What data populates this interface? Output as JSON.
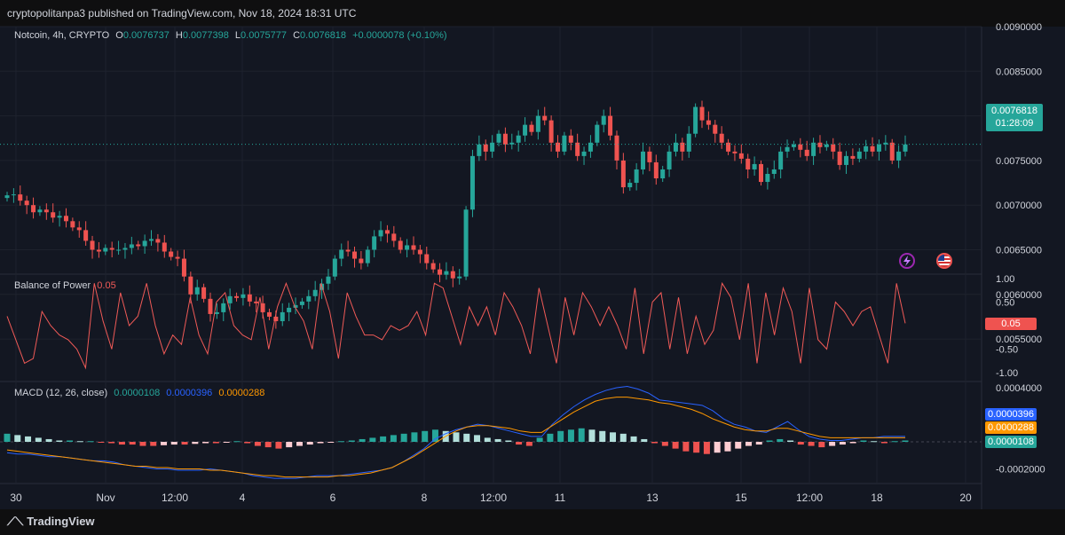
{
  "header": {
    "publisher_line": "cryptopolitanpa3 published on TradingView.com, Nov 18, 2024 18:31 UTC"
  },
  "legend": {
    "symbol": "Notcoin, 4h, CRYPTO",
    "o_label": "O",
    "o_value": "0.0076737",
    "h_label": "H",
    "h_value": "0.0077398",
    "l_label": "L",
    "l_value": "0.0075777",
    "c_label": "C",
    "c_value": "0.0076818",
    "change": "+0.0000078 (+0.10%)"
  },
  "price_badge": {
    "price": "0.0076818",
    "countdown": "01:28:09"
  },
  "bop": {
    "title": "Balance of Power",
    "value": "0.05",
    "badge": "0.05"
  },
  "macd": {
    "title": "MACD (12, 26, close)",
    "hist_value": "0.0000108",
    "macd_value": "0.0000396",
    "signal_value": "0.0000288",
    "badge_macd": "0.0000396",
    "badge_signal": "0.0000288",
    "badge_hist": "0.0000108"
  },
  "footer": {
    "brand": "TradingView"
  },
  "colors": {
    "up": "#26a69a",
    "down": "#ef5350",
    "bop_line": "#f05a57",
    "macd_line": "#2962ff",
    "signal_line": "#ff9800",
    "bg": "#131722"
  },
  "icons": {
    "flash": "lightning-icon",
    "flag": "us-flag-icon",
    "brand": "tradingview-logo"
  },
  "chart_data": [
    {
      "type": "candlestick",
      "title": "Notcoin, 4h, CRYPTO",
      "y_ticks": [
        "0.0090000",
        "0.0085000",
        "0.0080000",
        "0.0075000",
        "0.0070000",
        "0.0065000",
        "0.0060000",
        "0.0055000"
      ],
      "x_ticks": [
        "30",
        "Nov",
        "12:00",
        "4",
        "6",
        "8",
        "12:00",
        "11",
        "13",
        "15",
        "12:00",
        "18",
        "20"
      ],
      "ylim": [
        0.0051,
        0.0091
      ],
      "grid": true,
      "last_price": 0.0076818,
      "closes": [
        0.00711,
        0.00712,
        0.00705,
        0.007,
        0.00692,
        0.00695,
        0.00692,
        0.00686,
        0.00688,
        0.00682,
        0.00675,
        0.00672,
        0.0066,
        0.0065,
        0.00648,
        0.00652,
        0.0065,
        0.0065,
        0.00652,
        0.00656,
        0.00654,
        0.0066,
        0.00662,
        0.00658,
        0.00648,
        0.00642,
        0.0064,
        0.0062,
        0.006,
        0.00608,
        0.00595,
        0.00578,
        0.0058,
        0.0059,
        0.00598,
        0.00596,
        0.006,
        0.00592,
        0.0059,
        0.0058,
        0.00575,
        0.0057,
        0.0058,
        0.00585,
        0.00588,
        0.00592,
        0.00598,
        0.00605,
        0.00612,
        0.0062,
        0.0064,
        0.0065,
        0.00648,
        0.0064,
        0.00635,
        0.0065,
        0.00665,
        0.00672,
        0.00668,
        0.0066,
        0.0065,
        0.00655,
        0.0065,
        0.00645,
        0.00635,
        0.00628,
        0.00622,
        0.00626,
        0.00618,
        0.0062,
        0.00695,
        0.00755,
        0.00768,
        0.0076,
        0.0077,
        0.0078,
        0.00768,
        0.0077,
        0.00778,
        0.0079,
        0.00782,
        0.008,
        0.00795,
        0.0077,
        0.0076,
        0.00778,
        0.0077,
        0.00755,
        0.0076,
        0.0077,
        0.0079,
        0.008,
        0.00778,
        0.0075,
        0.0072,
        0.00725,
        0.0074,
        0.0076,
        0.00748,
        0.0073,
        0.0074,
        0.0076,
        0.0077,
        0.0076,
        0.0078,
        0.0081,
        0.00795,
        0.0079,
        0.0078,
        0.0077,
        0.0076,
        0.00758,
        0.00752,
        0.0074,
        0.00746,
        0.00726,
        0.00735,
        0.0074,
        0.0076,
        0.00765,
        0.00768,
        0.00762,
        0.00755,
        0.0077,
        0.00765,
        0.00768,
        0.0076,
        0.00745,
        0.00755,
        0.00752,
        0.0076,
        0.00766,
        0.0076,
        0.00768,
        0.0077,
        0.0075,
        0.0076,
        0.00768
      ]
    },
    {
      "type": "line",
      "title": "Balance of Power",
      "y_ticks": [
        "1.00",
        "0.50",
        "-0.50",
        "-1.00"
      ],
      "ylim": [
        -1.1,
        1.1
      ],
      "values": [
        0.2,
        -0.3,
        -0.8,
        -0.7,
        0.3,
        0.0,
        -0.2,
        -0.3,
        -0.5,
        -0.9,
        0.9,
        0.1,
        -0.5,
        0.7,
        0.0,
        0.2,
        0.9,
        0.0,
        -0.6,
        -0.2,
        -0.4,
        0.6,
        -0.2,
        -0.6,
        0.5,
        0.7,
        0.0,
        -0.2,
        -0.3,
        0.6,
        -0.5,
        0.4,
        0.9,
        0.4,
        0.1,
        -0.5,
        0.9,
        0.3,
        -0.7,
        0.7,
        0.2,
        -0.2,
        -0.2,
        -0.3,
        0.0,
        -0.1,
        0.0,
        0.3,
        -0.2,
        0.9,
        0.8,
        0.2,
        -0.4,
        0.4,
        0.0,
        0.4,
        -0.2,
        0.7,
        0.4,
        0.0,
        -0.6,
        0.8,
        0.0,
        -0.8,
        0.6,
        -0.2,
        0.7,
        0.4,
        0.0,
        0.4,
        0.0,
        -0.5,
        0.8,
        -0.6,
        0.5,
        0.7,
        -0.5,
        0.6,
        -0.6,
        0.2,
        -0.4,
        -0.1,
        0.9,
        0.6,
        -0.3,
        0.9,
        -0.8,
        0.7,
        -0.2,
        0.8,
        0.3,
        -0.8,
        0.8,
        -0.3,
        -0.5,
        0.5,
        0.3,
        0.0,
        0.3,
        0.4,
        -0.2,
        -0.8,
        0.9,
        0.05
      ]
    },
    {
      "type": "bar",
      "title": "MACD (12, 26, close)",
      "y_ticks": [
        "0.0004000",
        "-0.0002000"
      ],
      "ylim": [
        -0.00028,
        0.00045
      ],
      "series": [
        {
          "name": "0.0000396",
          "values": [
            -8e-05,
            -9e-05,
            -9e-05,
            -0.0001,
            -0.00011,
            -0.00011,
            -0.00012,
            -0.00013,
            -0.00014,
            -0.00014,
            -0.00015,
            -0.00017,
            -0.00018,
            -0.00019,
            -0.0002,
            -0.0002,
            -0.00021,
            -0.00021,
            -0.00021,
            -0.0002,
            -0.00021,
            -0.00022,
            -0.00023,
            -0.00025,
            -0.00026,
            -0.00027,
            -0.00027,
            -0.00027,
            -0.00026,
            -0.00025,
            -0.00025,
            -0.00025,
            -0.00024,
            -0.00023,
            -0.00022,
            -0.00021,
            -0.00019,
            -0.00015,
            -0.0001,
            -5e-05,
            2e-05,
            6e-05,
            9e-05,
            0.00011,
            0.00013,
            0.00012,
            0.0001,
            8e-05,
            6e-05,
            4e-05,
            4e-05,
            0.00013,
            0.0002,
            0.00026,
            0.00031,
            0.00035,
            0.00038,
            0.0004,
            0.00041,
            0.00039,
            0.00036,
            0.00031,
            0.0003,
            0.00029,
            0.00028,
            0.00027,
            0.00023,
            0.00017,
            0.00013,
            0.00011,
            8e-05,
            7e-05,
            0.00011,
            0.00015,
            9e-05,
            4e-05,
            2e-05,
            1e-05,
            1e-05,
            2e-05,
            3e-05,
            3e-05,
            4e-05,
            4e-05,
            4e-05
          ]
        },
        {
          "name": "0.0000288",
          "values": [
            -6e-05,
            -7e-05,
            -8e-05,
            -9e-05,
            -0.0001,
            -0.00011,
            -0.00012,
            -0.00013,
            -0.00014,
            -0.00015,
            -0.00016,
            -0.00017,
            -0.00018,
            -0.00018,
            -0.00019,
            -0.00019,
            -0.0002,
            -0.0002,
            -0.0002,
            -0.00021,
            -0.00021,
            -0.00022,
            -0.00023,
            -0.00024,
            -0.00025,
            -0.00025,
            -0.00026,
            -0.00026,
            -0.00026,
            -0.00026,
            -0.00026,
            -0.00025,
            -0.00025,
            -0.00024,
            -0.00023,
            -0.00021,
            -0.00019,
            -0.00015,
            -0.00011,
            -6e-05,
            -1e-05,
            4e-05,
            8e-05,
            0.00011,
            0.00012,
            0.00012,
            0.00011,
            0.0001,
            8e-05,
            7e-05,
            7e-05,
            0.00012,
            0.00017,
            0.00022,
            0.00026,
            0.0003,
            0.00032,
            0.00033,
            0.00033,
            0.00032,
            0.00031,
            0.00029,
            0.00028,
            0.00026,
            0.00024,
            0.00021,
            0.00017,
            0.00014,
            0.00011,
            9e-05,
            8e-05,
            8e-05,
            0.0001,
            0.0001,
            8e-05,
            6e-05,
            4e-05,
            3e-05,
            3e-05,
            3e-05,
            3e-05,
            3e-05,
            3e-05,
            3e-05,
            3e-05
          ]
        }
      ],
      "histogram": [
        6e-05,
        5e-05,
        4e-05,
        3e-05,
        2e-05,
        1e-05,
        1e-05,
        5e-06,
        5e-06,
        -5e-06,
        -1e-05,
        -2e-05,
        -2e-05,
        -3e-05,
        -3e-05,
        -2.5e-05,
        -2e-05,
        -2e-05,
        -1.5e-05,
        -1e-05,
        -1e-05,
        -5e-06,
        5e-06,
        -1e-05,
        -3e-05,
        -4e-05,
        -5e-05,
        -4e-05,
        -3e-05,
        -2e-05,
        -1e-05,
        -5e-06,
        5e-06,
        1e-05,
        2e-05,
        3e-05,
        4e-05,
        5e-05,
        6e-05,
        7e-05,
        8e-05,
        9e-05,
        8e-05,
        7e-05,
        6e-05,
        5e-05,
        3e-05,
        2e-05,
        1e-05,
        -2e-05,
        -3e-05,
        3e-05,
        6e-05,
        8e-05,
        9e-05,
        0.0001,
        9e-05,
        8e-05,
        7e-05,
        6e-05,
        4e-05,
        2e-05,
        -1e-05,
        -3e-05,
        -5e-05,
        -7e-05,
        -8e-05,
        -9e-05,
        -8e-05,
        -7e-05,
        -5e-05,
        -3e-05,
        -2e-05,
        1e-05,
        2e-05,
        1e-05,
        -2e-05,
        -3e-05,
        -4e-05,
        -3e-05,
        -2e-05,
        -1e-05,
        1e-05,
        5e-06,
        -1e-05,
        5e-06,
        1e-05
      ]
    }
  ]
}
